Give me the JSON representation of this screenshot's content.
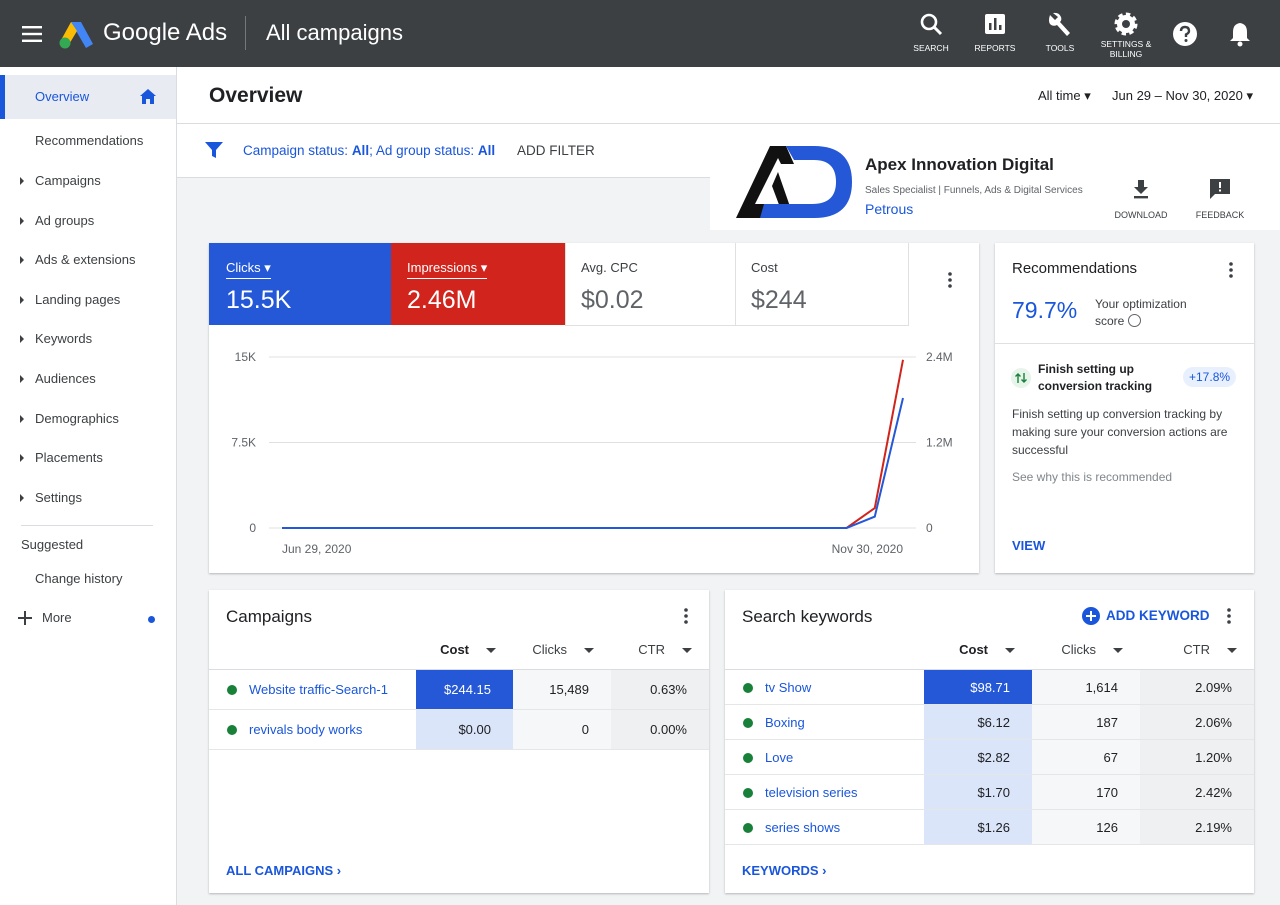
{
  "header": {
    "product": "Google Ads",
    "title": "All campaigns",
    "nav": [
      "SEARCH",
      "REPORTS",
      "TOOLS",
      "SETTINGS & BILLING"
    ]
  },
  "sidebar": {
    "top": [
      "Overview",
      "Recommendations"
    ],
    "sections": [
      "Campaigns",
      "Ad groups",
      "Ads & extensions",
      "Landing pages",
      "Keywords",
      "Audiences",
      "Demographics",
      "Placements",
      "Settings"
    ],
    "suggested": "Suggested",
    "extra": [
      "Change history"
    ],
    "more": "More"
  },
  "page": {
    "title": "Overview",
    "period": "All time",
    "date_range": "Jun 29 – Nov 30, 2020"
  },
  "filter": {
    "parts": [
      "Campaign status: ",
      "All",
      "; Ad group status: ",
      "All"
    ],
    "action": "ADD FILTER"
  },
  "brand": {
    "name": "Apex Innovation Digital",
    "tagline": "Sales Specialist | Funnels, Ads & Digital Services",
    "owner": "Petrous",
    "actions": [
      "DOWNLOAD",
      "FEEDBACK"
    ]
  },
  "metrics": [
    {
      "value": "15.5K"
    },
    {
      "value": "2.46M"
    },
    {
      "label": "Avg. CPC",
      "value": "$0.02"
    },
    {
      "label": "Cost",
      "value": "$244"
    }
  ],
  "chart_data": {
    "type": "line",
    "categories": [
      "Jun 29, 2020",
      null,
      null,
      null,
      null,
      null,
      null,
      null,
      null,
      null,
      null,
      null,
      null,
      null,
      null,
      null,
      null,
      null,
      null,
      null,
      null,
      null,
      "Nov 30, 2020"
    ],
    "series": [
      {
        "name": "Clicks",
        "color": "#2458d6",
        "values": [
          0,
          0,
          0,
          0,
          0,
          0,
          0,
          0,
          0,
          0,
          0,
          0,
          0,
          0,
          0,
          0,
          0,
          0,
          0,
          0,
          0,
          1000,
          11400
        ]
      },
      {
        "name": "Impressions",
        "color": "#d0241c",
        "axis": "y2",
        "values": [
          0,
          0,
          0,
          0,
          0,
          0,
          0,
          0,
          0,
          0,
          0,
          0,
          0,
          0,
          0,
          0,
          0,
          0,
          0,
          0,
          0,
          280000,
          2360000
        ]
      }
    ],
    "ylim": [
      0,
      15000
    ],
    "yticks": [
      0,
      {
        "value": 7500,
        "label": "7.5K"
      },
      {
        "value": 15000,
        "label": "15K"
      }
    ],
    "y2lim": [
      0,
      2400000
    ],
    "y2ticks": [
      0,
      {
        "value": 1200000,
        "label": "1.2M"
      },
      {
        "value": 2400000,
        "label": "2.4M"
      }
    ],
    "grid": true
  },
  "recommendations": {
    "title": "Recommendations",
    "score": "79.7%",
    "score_label": "Your optimization score",
    "item_title": "Finish setting up conversion tracking",
    "item_badge": "+17.8%",
    "item_text": "Finish setting up conversion tracking by making sure your conversion actions are successful",
    "note": "See why this is recommended",
    "action": "VIEW"
  },
  "campaigns": {
    "title": "Campaigns",
    "columns": [
      "Cost",
      "Clicks",
      "CTR"
    ],
    "rows": [
      [
        "Website traffic-Search-1",
        "$244.15",
        "15,489",
        "0.63%"
      ],
      [
        "revivals body works",
        "$0.00",
        "0",
        "0.00%"
      ]
    ],
    "footer": "ALL CAMPAIGNS"
  },
  "keywords": {
    "title": "Search keywords",
    "action": "ADD KEYWORD",
    "columns": [
      "Cost",
      "Clicks",
      "CTR"
    ],
    "rows": [
      [
        "tv Show",
        "$98.71",
        "1,614",
        "2.09%"
      ],
      [
        "Boxing",
        "$6.12",
        "187",
        "2.06%"
      ],
      [
        "Love",
        "$2.82",
        "67",
        "1.20%"
      ],
      [
        "television series",
        "$1.70",
        "170",
        "2.42%"
      ],
      [
        "series shows",
        "$1.26",
        "126",
        "2.19%"
      ]
    ],
    "footer": "KEYWORDS"
  }
}
